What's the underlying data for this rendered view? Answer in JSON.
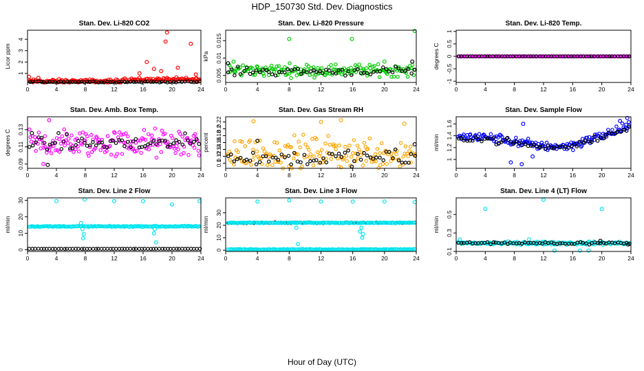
{
  "figure": {
    "title": "HDP_150730  Std. Dev. Diagnostics",
    "xlabel": "Hour of Day (UTC)"
  },
  "chart_data": [
    {
      "type": "scatter",
      "title": "Stan. Dev. Li-820 CO2",
      "ylabel": "Licor ppm",
      "xlim": [
        0,
        24
      ],
      "xticks": [
        0,
        4,
        8,
        12,
        16,
        20,
        24
      ],
      "ylim": [
        0.2,
        4.8
      ],
      "yticks": [
        1,
        2,
        3,
        4
      ],
      "series": [
        {
          "color": "#ff0000",
          "base": 0.3,
          "noise": 0.15,
          "trend": "co2",
          "outliers": [
            [
              0.2,
              0.7
            ],
            [
              1.5,
              0.6
            ],
            [
              15.5,
              1.0
            ],
            [
              16.5,
              2.0
            ],
            [
              17.5,
              1.4
            ],
            [
              18.5,
              1.2
            ],
            [
              19.1,
              3.8
            ],
            [
              19.3,
              4.6
            ],
            [
              20.8,
              1.5
            ],
            [
              22.6,
              3.6
            ],
            [
              23.3,
              0.9
            ],
            [
              23.6,
              0.4
            ]
          ]
        },
        {
          "color": "#000000",
          "base": 0.25,
          "noise": 0.05,
          "outliers": []
        }
      ]
    },
    {
      "type": "scatter",
      "title": "Stan. Dev. Li-820 Pressure",
      "ylabel": "kPa",
      "xlim": [
        0,
        24
      ],
      "xticks": [
        0,
        4,
        8,
        12,
        16,
        20,
        24
      ],
      "ylim": [
        0.003,
        0.018
      ],
      "yticks": [
        0.005,
        0.01,
        0.015
      ],
      "series": [
        {
          "color": "#00cc00",
          "base": 0.0065,
          "noise": 0.0015,
          "outliers": [
            [
              8.0,
              0.0155
            ],
            [
              15.9,
              0.0155
            ],
            [
              23.8,
              0.0178
            ],
            [
              1.0,
              0.009
            ],
            [
              20.0,
              0.009
            ]
          ]
        },
        {
          "color": "#000000",
          "base": 0.0062,
          "noise": 0.001,
          "outliers": [
            [
              0.3,
              0.0085
            ],
            [
              23.5,
              0.009
            ]
          ]
        }
      ]
    },
    {
      "type": "scatter",
      "title": "Stan. Dev. Li-820 Temp.",
      "ylabel": "degrees C",
      "xlim": [
        0,
        24
      ],
      "xticks": [
        0,
        4,
        8,
        12,
        16,
        20,
        24
      ],
      "ylim": [
        -1.05,
        1.05
      ],
      "yticks": [
        -1.0,
        -0.5,
        0.0,
        0.5,
        1.0
      ],
      "series": [
        {
          "color": "#ff00ff",
          "base": 0.0,
          "noise": 0.0,
          "outliers": []
        },
        {
          "color": "#000000",
          "base": 0.0,
          "noise": 0.0,
          "outliers": []
        }
      ]
    },
    {
      "type": "scatter",
      "title": "Stan. Dev. Amb. Box Temp.",
      "ylabel": "degrees C",
      "xlim": [
        0,
        24
      ],
      "xticks": [
        0,
        4,
        8,
        12,
        16,
        20,
        24
      ],
      "ylim": [
        0.085,
        0.145
      ],
      "yticks": [
        0.09,
        0.11,
        0.13
      ],
      "series": [
        {
          "color": "#ff00ff",
          "base": 0.114,
          "noise": 0.014,
          "outliers": [
            [
              3.0,
              0.141
            ],
            [
              2.2,
              0.09
            ]
          ]
        },
        {
          "color": "#000000",
          "base": 0.114,
          "noise": 0.008,
          "outliers": [
            [
              0.6,
              0.126
            ],
            [
              2.8,
              0.089
            ]
          ]
        }
      ]
    },
    {
      "type": "scatter",
      "title": "Stan. Dev. Gas Stream RH",
      "ylabel": "percent",
      "xlim": [
        0,
        24
      ],
      "xticks": [
        0,
        4,
        8,
        12,
        16,
        20,
        24
      ],
      "ylim": [
        0.085,
        0.235
      ],
      "yticks": [
        0.1,
        0.12,
        0.14,
        0.16,
        0.18,
        0.2,
        0.22
      ],
      "series": [
        {
          "color": "#ffa500",
          "base": 0.13,
          "noise": 0.04,
          "outliers": [
            [
              3.5,
              0.222
            ],
            [
              12.0,
              0.22
            ],
            [
              14.5,
              0.225
            ],
            [
              22.5,
              0.215
            ]
          ]
        },
        {
          "color": "#000000",
          "base": 0.115,
          "noise": 0.02,
          "outliers": [
            [
              4.0,
              0.165
            ],
            [
              23.8,
              0.155
            ]
          ]
        }
      ]
    },
    {
      "type": "scatter",
      "title": "Stan. Dev. Sample Flow",
      "ylabel": "ml/min",
      "xlim": [
        0,
        24
      ],
      "xticks": [
        0,
        4,
        8,
        12,
        16,
        20,
        24
      ],
      "ylim": [
        0.85,
        1.72
      ],
      "yticks": [
        1.0,
        1.2,
        1.4,
        1.6
      ],
      "series": [
        {
          "color": "#0000ff",
          "base": 1.3,
          "noise": 0.07,
          "trend": "flow",
          "outliers": [
            [
              9.2,
              1.6
            ],
            [
              7.5,
              0.95
            ],
            [
              9.0,
              0.92
            ],
            [
              23.5,
              1.7
            ],
            [
              22.5,
              1.65
            ],
            [
              10.5,
              1.05
            ]
          ]
        },
        {
          "color": "#000000",
          "base": 1.28,
          "noise": 0.05,
          "trend": "flow",
          "outliers": []
        }
      ]
    },
    {
      "type": "scatter",
      "title": "Stan. Dev. Line 2 Flow",
      "ylabel": "ml/min",
      "xlim": [
        0,
        24
      ],
      "xticks": [
        0,
        4,
        8,
        12,
        16,
        20,
        24
      ],
      "ylim": [
        -1,
        31.5
      ],
      "yticks": [
        0,
        10,
        20,
        30
      ],
      "series": [
        {
          "color": "#00e5ee",
          "base": 14.2,
          "noise": 0.3,
          "outliers": [
            [
              4.0,
              29.5
            ],
            [
              7.9,
              30.5
            ],
            [
              12.0,
              29.5
            ],
            [
              16.0,
              29.5
            ],
            [
              20.0,
              27.5
            ],
            [
              23.8,
              29.5
            ],
            [
              7.4,
              16.2
            ],
            [
              7.6,
              12.5
            ],
            [
              7.8,
              9.5
            ],
            [
              7.7,
              7.0
            ],
            [
              17.6,
              12.5
            ],
            [
              17.8,
              4.5
            ],
            [
              17.5,
              10.0
            ]
          ]
        },
        {
          "color": "#000000",
          "base": 0.6,
          "noise": 0.05,
          "outliers": []
        }
      ]
    },
    {
      "type": "scatter",
      "title": "Stan. Dev. Line 3 Flow",
      "ylabel": "ml/min",
      "xlim": [
        0,
        24
      ],
      "xticks": [
        0,
        4,
        8,
        12,
        16,
        20,
        24
      ],
      "ylim": [
        -1,
        42
      ],
      "yticks": [
        0,
        10,
        20,
        30
      ],
      "series": [
        {
          "color": "#00e5ee",
          "base": 0.7,
          "noise": 0.3,
          "outliers": [
            [
              4.0,
              39.0
            ],
            [
              8.0,
              40.0
            ],
            [
              12.0,
              39.0
            ],
            [
              16.0,
              39.0
            ],
            [
              20.0,
              39.0
            ],
            [
              23.8,
              38.5
            ],
            [
              9.0,
              22.0
            ],
            [
              9.1,
              5.0
            ],
            [
              8.9,
              18.0
            ],
            [
              17.0,
              22.0
            ],
            [
              17.1,
              18.0
            ],
            [
              17.2,
              10.0
            ],
            [
              16.9,
              15.0
            ],
            [
              17.3,
              13.0
            ]
          ]
        },
        {
          "color": "#000000",
          "base": 22.0,
          "noise": 0.25,
          "outliers": []
        },
        {
          "color": "#00e5ee",
          "base": 22.0,
          "noise": 0.3,
          "outliers": []
        }
      ]
    },
    {
      "type": "scatter",
      "title": "Stan. Dev. Line 4 (LT) Flow",
      "ylabel": "ml/min",
      "xlim": [
        0,
        24
      ],
      "xticks": [
        0,
        4,
        8,
        12,
        16,
        20,
        24
      ],
      "ylim": [
        0.1,
        0.68
      ],
      "yticks": [
        0.1,
        0.3,
        0.5
      ],
      "series": [
        {
          "color": "#00e5ee",
          "base": 0.19,
          "noise": 0.015,
          "outliers": [
            [
              4.0,
              0.56
            ],
            [
              12.0,
              0.66
            ],
            [
              20.0,
              0.56
            ],
            [
              0.5,
              0.23
            ],
            [
              10.0,
              0.23
            ],
            [
              13.5,
              0.11
            ],
            [
              17.0,
              0.11
            ],
            [
              18.2,
              0.11
            ]
          ]
        },
        {
          "color": "#000000",
          "base": 0.19,
          "noise": 0.012,
          "outliers": [
            [
              19.8,
              0.215
            ],
            [
              23.6,
              0.175
            ]
          ]
        }
      ]
    }
  ]
}
